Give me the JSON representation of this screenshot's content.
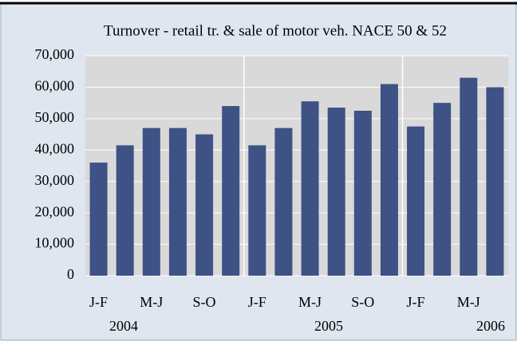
{
  "chart_data": {
    "type": "bar",
    "title": "Turnover - retail tr. & sale of motor veh. NACE 50 & 52",
    "categories": [
      "J-F",
      null,
      "M-J",
      null,
      "S-O",
      null,
      "J-F",
      null,
      "M-J",
      null,
      "S-O",
      null,
      "J-F",
      null,
      "M-J",
      null
    ],
    "values": [
      36000,
      41500,
      47000,
      47000,
      45000,
      54000,
      41500,
      47000,
      55500,
      53500,
      52500,
      61000,
      47500,
      55000,
      63000,
      60000
    ],
    "years": [
      "2004",
      "2005",
      "2006"
    ],
    "color": "#3e5285",
    "ylim": [
      0,
      70000
    ],
    "yticks": [
      0,
      {
        "value": 10000,
        "label": "10,000"
      },
      {
        "value": 20000,
        "label": "20,000"
      },
      {
        "value": 30000,
        "label": "30,000"
      },
      {
        "value": 40000,
        "label": "40,000"
      },
      {
        "value": 50000,
        "label": "50,000"
      },
      {
        "value": 60000,
        "label": "60,000"
      },
      {
        "value": 70000,
        "label": "70,000"
      }
    ],
    "grid": true
  }
}
